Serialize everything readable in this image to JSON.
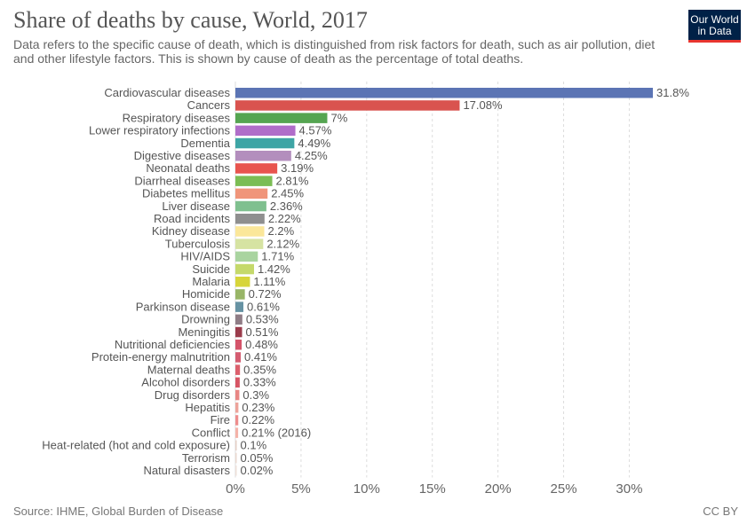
{
  "header": {
    "title": "Share of deaths by cause, World, 2017",
    "subtitle": "Data refers to the specific cause of death, which is distinguished from risk factors for death, such as air pollution, diet and other lifestyle factors. This is shown by cause of death as the percentage of total deaths."
  },
  "logo": {
    "line1": "Our World",
    "line2": "in Data"
  },
  "footer": {
    "source": "Source: IHME, Global Burden of Disease",
    "license": "CC BY"
  },
  "chart_data": {
    "type": "bar",
    "orientation": "horizontal",
    "title": "Share of deaths by cause, World, 2017",
    "xlim": [
      0,
      32
    ],
    "x_ticks": [
      0,
      5,
      10,
      15,
      20,
      25,
      30
    ],
    "x_tick_labels": [
      "0%",
      "5%",
      "10%",
      "15%",
      "20%",
      "25%",
      "30%"
    ],
    "grid": "vertical dashed",
    "categories": [
      "Cardiovascular diseases",
      "Cancers",
      "Respiratory diseases",
      "Lower respiratory infections",
      "Dementia",
      "Digestive diseases",
      "Neonatal deaths",
      "Diarrheal diseases",
      "Diabetes mellitus",
      "Liver disease",
      "Road incidents",
      "Kidney disease",
      "Tuberculosis",
      "HIV/AIDS",
      "Suicide",
      "Malaria",
      "Homicide",
      "Parkinson disease",
      "Drowning",
      "Meningitis",
      "Nutritional deficiencies",
      "Protein-energy malnutrition",
      "Maternal deaths",
      "Alcohol disorders",
      "Drug disorders",
      "Hepatitis",
      "Fire",
      "Conflict",
      "Heat-related (hot and cold exposure)",
      "Terrorism",
      "Natural disasters"
    ],
    "values": [
      31.8,
      17.08,
      7,
      4.57,
      4.49,
      4.25,
      3.19,
      2.81,
      2.45,
      2.36,
      2.22,
      2.2,
      2.12,
      1.71,
      1.42,
      1.11,
      0.72,
      0.61,
      0.53,
      0.51,
      0.48,
      0.41,
      0.35,
      0.33,
      0.3,
      0.23,
      0.22,
      0.21,
      0.1,
      0.05,
      0.02
    ],
    "value_labels": [
      "31.8%",
      "17.08%",
      "7%",
      "4.57%",
      "4.49%",
      "4.25%",
      "3.19%",
      "2.81%",
      "2.45%",
      "2.36%",
      "2.22%",
      "2.2%",
      "2.12%",
      "1.71%",
      "1.42%",
      "1.11%",
      "0.72%",
      "0.61%",
      "0.53%",
      "0.51%",
      "0.48%",
      "0.41%",
      "0.35%",
      "0.33%",
      "0.3%",
      "0.23%",
      "0.22%",
      "0.21% (2016)",
      "0.1%",
      "0.05%",
      "0.02%"
    ],
    "colors": [
      "#5b74b4",
      "#d9534f",
      "#55a551",
      "#b06dc9",
      "#3ea5a5",
      "#b38ebd",
      "#e8544e",
      "#7bbd54",
      "#f0957a",
      "#7fc08f",
      "#8f8f8f",
      "#fbe79a",
      "#d6e3a2",
      "#a9d4a0",
      "#c5d96b",
      "#d7d53a",
      "#98b567",
      "#6692a3",
      "#8f7d86",
      "#9b3c4c",
      "#d4546a",
      "#d45c70",
      "#dc5f6c",
      "#d65564",
      "#e88684",
      "#eda39a",
      "#ee8d8d",
      "#f4b2a8",
      "#e6cfc6",
      "#ead8cf",
      "#eee0d9"
    ]
  }
}
